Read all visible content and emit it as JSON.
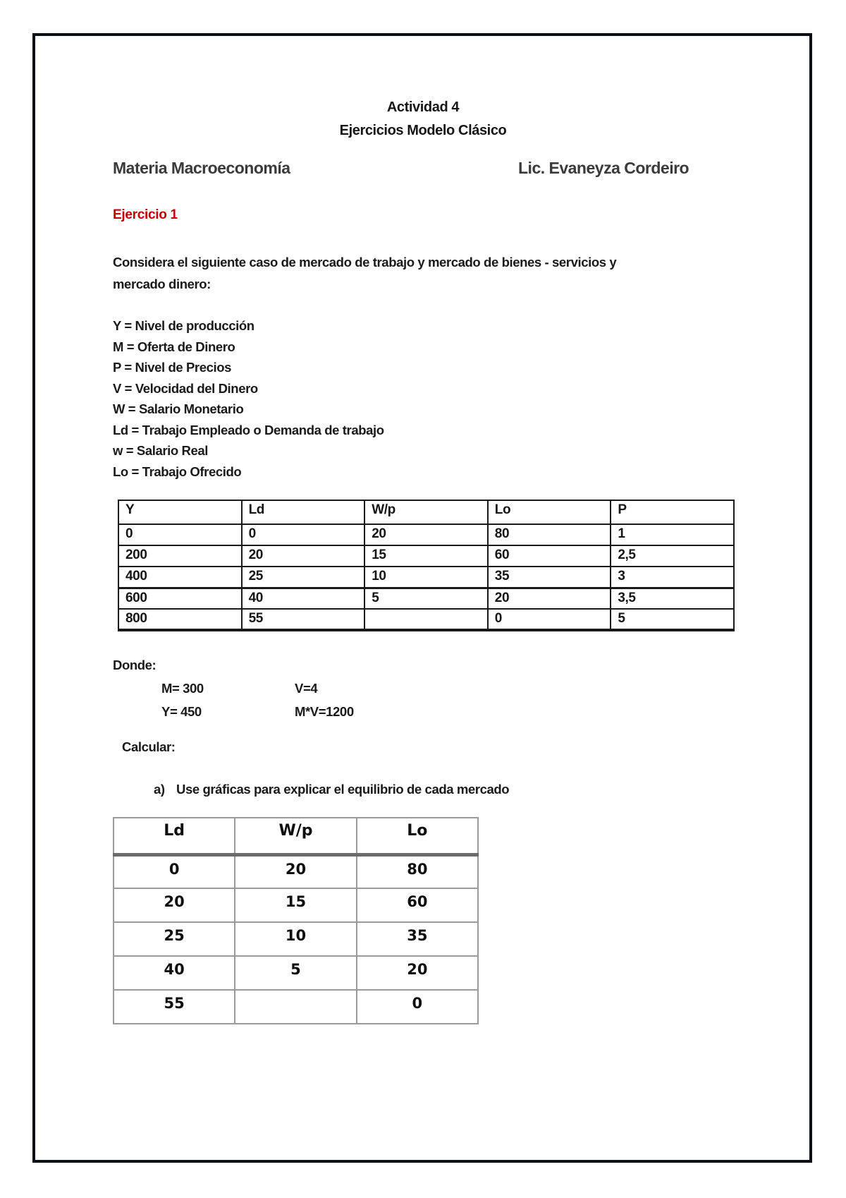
{
  "header": {
    "title_line1": "Actividad 4",
    "title_line2": "Ejercicios Modelo Clásico",
    "subject": "Materia Macroeconomía",
    "teacher": "Lic. Evaneyza Cordeiro"
  },
  "exercise": {
    "heading": "Ejercicio 1",
    "intro_line1": "Considera el siguiente caso de mercado de trabajo y mercado de bienes - servicios y",
    "intro_line2": "mercado dinero:",
    "definitions": [
      "Y = Nivel de producción",
      "M = Oferta de Dinero",
      "P = Nivel de Precios",
      "V = Velocidad del Dinero",
      "W = Salario Monetario",
      "Ld = Trabajo Empleado o Demanda de trabajo",
      "w = Salario Real",
      "Lo = Trabajo Ofrecido"
    ]
  },
  "table1": {
    "headers": [
      "Y",
      "Ld",
      "W/p",
      "Lo",
      "P"
    ],
    "rows": [
      [
        "0",
        "0",
        "20",
        "80",
        "1"
      ],
      [
        "200",
        "20",
        "15",
        "60",
        "2,5"
      ],
      [
        "400",
        "25",
        "10",
        "35",
        "3"
      ],
      [
        "600",
        "40",
        "5",
        "20",
        "3,5"
      ],
      [
        "800",
        "55",
        "",
        "0",
        "5"
      ]
    ]
  },
  "donde": {
    "label": "Donde:",
    "m": "M= 300",
    "v": "V=4",
    "y": "Y= 450",
    "mv": "M*V=1200"
  },
  "calcular": {
    "label": "Calcular:",
    "item_a_marker": "a)",
    "item_a_text": "Use gráficas para explicar el equilibrio de cada mercado"
  },
  "table2": {
    "headers": [
      "Ld",
      "W/p",
      "Lo"
    ],
    "rows": [
      [
        "0",
        "20",
        "80"
      ],
      [
        "20",
        "15",
        "60"
      ],
      [
        "25",
        "10",
        "35"
      ],
      [
        "40",
        "5",
        "20"
      ],
      [
        "55",
        "",
        "0"
      ]
    ]
  },
  "colors": {
    "accent_red": "#C00000",
    "page_border": "#0d0d14",
    "table2_border": "#9a9a9a"
  }
}
